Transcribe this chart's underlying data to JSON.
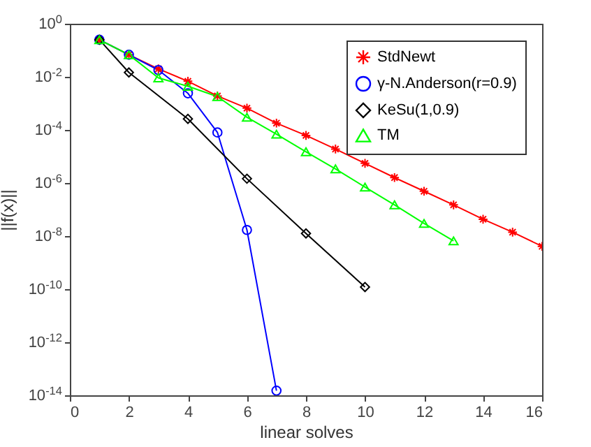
{
  "chart_data": {
    "type": "line",
    "xlabel": "linear solves",
    "ylabel": "||f(x)||",
    "log": "y",
    "legend": "top right",
    "grid": false,
    "xlim": [
      0,
      16
    ],
    "xticks": [
      0,
      2,
      4,
      6,
      8,
      10,
      12,
      14,
      16
    ],
    "ylim": [
      1e-14,
      1
    ],
    "yticks": [
      {
        "value": 1e-14,
        "label": "10$^{-14}$"
      },
      {
        "value": 1e-12,
        "label": "10$^{-12}$"
      },
      {
        "value": 1e-10,
        "label": "10$^{-10}$"
      },
      {
        "value": 1e-08,
        "label": "10$^{-8}$"
      },
      {
        "value": 1e-06,
        "label": "10$^{-6}$"
      },
      {
        "value": 0.0001,
        "label": "10$^{-4}$"
      },
      {
        "value": 0.01,
        "label": "10$^{-2}$"
      },
      {
        "value": 1,
        "label": "10$^{0}$"
      }
    ],
    "series": [
      {
        "name": "StdNewt",
        "color": "#ff0000",
        "marker": "cross",
        "x": [
          1,
          2,
          3,
          4,
          5,
          6,
          7,
          8,
          9,
          10,
          11,
          12,
          13,
          14,
          15,
          16
        ],
        "values": [
          0.25,
          0.068,
          0.02,
          0.0068,
          0.0019,
          0.00066,
          0.00018,
          6.2e-05,
          1.9e-05,
          5.5e-06,
          1.6e-06,
          4.9e-07,
          1.5e-07,
          4.3e-08,
          1.4e-08,
          4.1e-09
        ]
      },
      {
        "name": "γ-N.Anderson(r=0.9)",
        "color": "#0000ff",
        "marker": "circle",
        "x": [
          1,
          2,
          3,
          4,
          5,
          6,
          7
        ],
        "values": [
          0.25,
          0.068,
          0.018,
          0.0024,
          8e-05,
          1.7e-08,
          1.5e-14
        ]
      },
      {
        "name": "KeSu(1,0.9)",
        "color": "#000000",
        "marker": "diamond",
        "x": [
          1,
          2,
          4,
          6,
          8,
          10
        ],
        "values": [
          0.25,
          0.0146,
          0.00026,
          1.45e-06,
          1.26e-08,
          1.2e-10
        ]
      },
      {
        "name": "TM",
        "color": "#00ff00",
        "marker": "triangle",
        "x": [
          1,
          2,
          3,
          4,
          5,
          6,
          7,
          8,
          9,
          10,
          11,
          12,
          13
        ],
        "values": [
          0.25,
          0.068,
          0.0091,
          0.0044,
          0.0018,
          0.0003,
          6.9e-05,
          1.5e-05,
          3.4e-06,
          7e-07,
          1.5e-07,
          3e-08,
          6.6e-09
        ]
      }
    ]
  }
}
